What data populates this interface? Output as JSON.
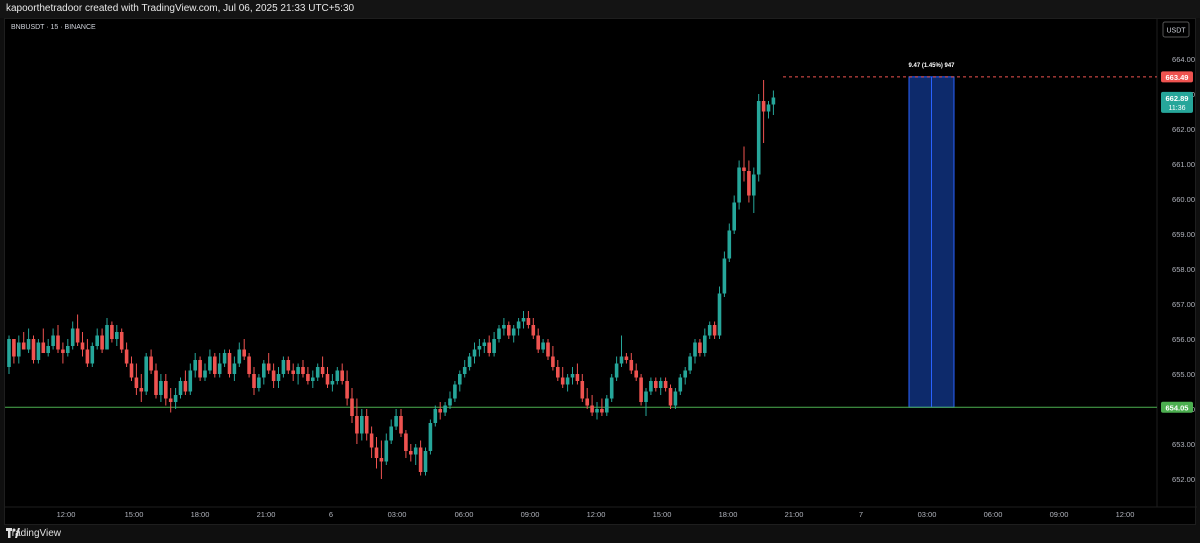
{
  "header": {
    "title": "kapoorthetradoor created with TradingView.com, Jul 06, 2025 21:33 UTC+5:30"
  },
  "footer": {
    "brand": "TradingView"
  },
  "colors": {
    "up": "#26a69a",
    "down": "#ef5350",
    "measure_fill": "#0d2a6b",
    "measure_border": "#2962ff",
    "support_line": "#4caf50",
    "resistance_line": "#ef5350"
  },
  "chart_data": {
    "type": "candlestick",
    "symbol": "BNBUSDT · 15 · BINANCE",
    "currency_button": "USDT",
    "ylim": [
      651.7,
      664.6
    ],
    "y_ticks": [
      "664.00",
      "663.00",
      "662.00",
      "661.00",
      "660.00",
      "659.00",
      "658.00",
      "657.00",
      "656.00",
      "655.00",
      "654.00",
      "653.00",
      "652.00"
    ],
    "x_ticks": [
      "12:00",
      "15:00",
      "18:00",
      "21:00",
      "6",
      "03:00",
      "06:00",
      "09:00",
      "12:00",
      "15:00",
      "18:00",
      "21:00",
      "7",
      "03:00",
      "06:00",
      "09:00",
      "12:00"
    ],
    "candles": [
      [
        655.2,
        656.1,
        655.0,
        656.0
      ],
      [
        656.0,
        656.0,
        655.3,
        655.5
      ],
      [
        655.5,
        656.1,
        655.3,
        655.9
      ],
      [
        655.9,
        656.2,
        655.7,
        655.7
      ],
      [
        655.7,
        656.3,
        655.6,
        656.0
      ],
      [
        656.0,
        656.1,
        655.3,
        655.4
      ],
      [
        655.4,
        656.0,
        655.3,
        655.9
      ],
      [
        655.9,
        656.3,
        655.6,
        655.6
      ],
      [
        655.6,
        656.0,
        655.5,
        655.8
      ],
      [
        655.8,
        656.3,
        655.7,
        656.1
      ],
      [
        656.1,
        656.4,
        655.6,
        655.7
      ],
      [
        655.7,
        655.9,
        655.3,
        655.6
      ],
      [
        655.6,
        656.0,
        655.5,
        655.8
      ],
      [
        655.8,
        656.5,
        655.7,
        656.3
      ],
      [
        656.3,
        656.7,
        655.8,
        655.9
      ],
      [
        655.9,
        656.2,
        655.5,
        655.7
      ],
      [
        655.7,
        656.0,
        655.2,
        655.3
      ],
      [
        655.3,
        655.9,
        655.2,
        655.8
      ],
      [
        655.8,
        656.3,
        655.7,
        656.1
      ],
      [
        656.1,
        656.3,
        655.6,
        655.7
      ],
      [
        655.7,
        656.6,
        655.7,
        656.4
      ],
      [
        656.4,
        656.5,
        655.9,
        656.0
      ],
      [
        656.0,
        656.4,
        655.8,
        656.2
      ],
      [
        656.2,
        656.3,
        655.6,
        655.7
      ],
      [
        655.7,
        655.9,
        655.2,
        655.3
      ],
      [
        655.3,
        655.5,
        654.8,
        654.9
      ],
      [
        654.9,
        655.3,
        654.4,
        654.6
      ],
      [
        654.6,
        655.0,
        654.2,
        654.5
      ],
      [
        654.5,
        655.6,
        654.4,
        655.5
      ],
      [
        655.5,
        655.7,
        655.0,
        655.1
      ],
      [
        655.1,
        655.3,
        654.3,
        654.4
      ],
      [
        654.4,
        655.0,
        654.2,
        654.8
      ],
      [
        654.8,
        655.0,
        654.1,
        654.3
      ],
      [
        654.3,
        654.6,
        653.9,
        654.2
      ],
      [
        654.2,
        654.6,
        654.0,
        654.4
      ],
      [
        654.4,
        654.9,
        654.3,
        654.8
      ],
      [
        654.8,
        655.1,
        654.4,
        654.5
      ],
      [
        654.5,
        655.3,
        654.4,
        655.1
      ],
      [
        655.1,
        655.6,
        654.9,
        655.4
      ],
      [
        655.4,
        655.5,
        654.8,
        654.9
      ],
      [
        654.9,
        655.3,
        654.8,
        655.1
      ],
      [
        655.1,
        655.7,
        655.0,
        655.5
      ],
      [
        655.5,
        655.6,
        654.9,
        655.0
      ],
      [
        655.0,
        655.6,
        654.9,
        655.3
      ],
      [
        655.3,
        655.7,
        655.2,
        655.6
      ],
      [
        655.6,
        655.7,
        654.9,
        655.0
      ],
      [
        655.0,
        655.5,
        654.8,
        655.3
      ],
      [
        655.3,
        655.9,
        655.2,
        655.7
      ],
      [
        655.7,
        656.0,
        655.4,
        655.5
      ],
      [
        655.5,
        655.6,
        654.9,
        655.0
      ],
      [
        655.0,
        655.2,
        654.4,
        654.6
      ],
      [
        654.6,
        655.0,
        654.5,
        654.9
      ],
      [
        654.9,
        655.4,
        654.7,
        655.3
      ],
      [
        655.3,
        655.6,
        655.0,
        655.1
      ],
      [
        655.1,
        655.3,
        654.6,
        654.8
      ],
      [
        654.8,
        655.2,
        654.6,
        655.0
      ],
      [
        655.0,
        655.5,
        654.9,
        655.4
      ],
      [
        655.4,
        655.5,
        655.0,
        655.1
      ],
      [
        655.1,
        655.3,
        654.8,
        655.0
      ],
      [
        655.0,
        655.3,
        654.7,
        655.2
      ],
      [
        655.2,
        655.4,
        654.9,
        655.0
      ],
      [
        655.0,
        655.2,
        654.7,
        654.8
      ],
      [
        654.8,
        655.1,
        654.6,
        654.9
      ],
      [
        654.9,
        655.3,
        654.8,
        655.2
      ],
      [
        655.2,
        655.5,
        654.9,
        655.0
      ],
      [
        655.0,
        655.2,
        654.6,
        654.7
      ],
      [
        654.7,
        655.0,
        654.5,
        654.8
      ],
      [
        654.8,
        655.2,
        654.7,
        655.1
      ],
      [
        655.1,
        655.3,
        654.7,
        654.8
      ],
      [
        654.8,
        655.1,
        654.1,
        654.3
      ],
      [
        654.3,
        654.6,
        653.6,
        653.8
      ],
      [
        653.8,
        654.3,
        653.0,
        653.3
      ],
      [
        653.3,
        654.0,
        653.1,
        653.8
      ],
      [
        653.8,
        654.0,
        653.1,
        653.3
      ],
      [
        653.3,
        653.5,
        652.6,
        652.9
      ],
      [
        652.9,
        653.2,
        652.3,
        652.6
      ],
      [
        652.6,
        653.1,
        652.0,
        652.5
      ],
      [
        652.5,
        653.3,
        652.4,
        653.1
      ],
      [
        653.1,
        653.7,
        653.0,
        653.5
      ],
      [
        653.5,
        654.0,
        653.4,
        653.8
      ],
      [
        653.8,
        654.0,
        653.2,
        653.3
      ],
      [
        653.3,
        653.4,
        652.6,
        652.8
      ],
      [
        652.8,
        653.0,
        652.5,
        652.7
      ],
      [
        652.7,
        653.0,
        652.4,
        652.9
      ],
      [
        652.9,
        653.1,
        652.1,
        652.2
      ],
      [
        652.2,
        652.9,
        652.1,
        652.8
      ],
      [
        652.8,
        653.7,
        652.7,
        653.6
      ],
      [
        653.6,
        654.1,
        653.5,
        654.0
      ],
      [
        654.0,
        654.2,
        653.7,
        653.9
      ],
      [
        653.9,
        654.2,
        653.8,
        654.1
      ],
      [
        654.1,
        654.5,
        654.0,
        654.3
      ],
      [
        654.3,
        654.8,
        654.2,
        654.7
      ],
      [
        654.7,
        655.1,
        654.5,
        655.0
      ],
      [
        655.0,
        655.4,
        654.9,
        655.2
      ],
      [
        655.2,
        655.6,
        655.1,
        655.5
      ],
      [
        655.5,
        655.9,
        655.3,
        655.7
      ],
      [
        655.7,
        656.0,
        655.5,
        655.8
      ],
      [
        655.8,
        656.0,
        655.6,
        655.9
      ],
      [
        655.9,
        656.1,
        655.5,
        655.6
      ],
      [
        655.6,
        656.2,
        655.5,
        656.0
      ],
      [
        656.0,
        656.4,
        655.9,
        656.3
      ],
      [
        656.3,
        656.6,
        656.1,
        656.4
      ],
      [
        656.4,
        656.5,
        656.0,
        656.1
      ],
      [
        656.1,
        656.4,
        655.9,
        656.3
      ],
      [
        656.3,
        656.6,
        656.1,
        656.5
      ],
      [
        656.5,
        656.8,
        656.3,
        656.6
      ],
      [
        656.6,
        656.8,
        656.3,
        656.4
      ],
      [
        656.4,
        656.6,
        656.0,
        656.1
      ],
      [
        656.1,
        656.3,
        655.6,
        655.7
      ],
      [
        655.7,
        656.0,
        655.6,
        655.9
      ],
      [
        655.9,
        656.0,
        655.4,
        655.5
      ],
      [
        655.5,
        655.8,
        655.1,
        655.2
      ],
      [
        655.2,
        655.4,
        654.8,
        654.9
      ],
      [
        654.9,
        655.2,
        654.6,
        654.7
      ],
      [
        654.7,
        655.0,
        654.5,
        654.9
      ],
      [
        654.9,
        655.2,
        654.7,
        655.0
      ],
      [
        655.0,
        655.3,
        654.7,
        654.8
      ],
      [
        654.8,
        655.0,
        654.2,
        654.3
      ],
      [
        654.3,
        654.6,
        654.0,
        654.1
      ],
      [
        654.1,
        654.4,
        653.8,
        653.9
      ],
      [
        653.9,
        654.2,
        653.7,
        654.0
      ],
      [
        654.0,
        654.3,
        653.8,
        653.9
      ],
      [
        653.9,
        654.4,
        653.8,
        654.3
      ],
      [
        654.3,
        655.0,
        654.2,
        654.9
      ],
      [
        654.9,
        655.5,
        654.8,
        655.3
      ],
      [
        655.3,
        656.1,
        655.2,
        655.5
      ],
      [
        655.5,
        655.6,
        655.3,
        655.4
      ],
      [
        655.4,
        655.6,
        655.0,
        655.1
      ],
      [
        655.1,
        655.3,
        654.8,
        654.9
      ],
      [
        654.9,
        655.0,
        654.1,
        654.2
      ],
      [
        654.2,
        654.6,
        653.8,
        654.5
      ],
      [
        654.5,
        654.9,
        654.4,
        654.8
      ],
      [
        654.8,
        654.9,
        654.5,
        654.6
      ],
      [
        654.6,
        654.9,
        654.4,
        654.8
      ],
      [
        654.8,
        654.9,
        654.5,
        654.6
      ],
      [
        654.6,
        654.7,
        654.0,
        654.1
      ],
      [
        654.1,
        654.6,
        654.0,
        654.5
      ],
      [
        654.5,
        655.0,
        654.4,
        654.9
      ],
      [
        654.9,
        655.2,
        654.7,
        655.1
      ],
      [
        655.1,
        655.6,
        655.0,
        655.5
      ],
      [
        655.5,
        656.0,
        655.3,
        655.9
      ],
      [
        655.9,
        656.0,
        655.5,
        655.6
      ],
      [
        655.6,
        656.3,
        655.5,
        656.1
      ],
      [
        656.1,
        656.5,
        656.0,
        656.4
      ],
      [
        656.4,
        656.5,
        656.0,
        656.1
      ],
      [
        656.1,
        657.5,
        656.0,
        657.3
      ],
      [
        657.3,
        658.5,
        657.2,
        658.3
      ],
      [
        658.3,
        659.3,
        658.2,
        659.1
      ],
      [
        659.1,
        660.1,
        659.0,
        659.9
      ],
      [
        659.9,
        661.1,
        659.7,
        660.9
      ],
      [
        660.9,
        661.5,
        660.5,
        660.8
      ],
      [
        660.8,
        661.1,
        659.9,
        660.1
      ],
      [
        660.1,
        660.9,
        659.6,
        660.7
      ],
      [
        660.7,
        663.0,
        660.5,
        662.8
      ],
      [
        662.8,
        663.4,
        661.6,
        662.5
      ],
      [
        662.5,
        662.8,
        662.3,
        662.7
      ],
      [
        662.7,
        663.1,
        662.4,
        662.9
      ]
    ],
    "annotations": {
      "resistance_price": "663.49",
      "support_price": "654.05",
      "last_price": "662.89",
      "countdown": "11:36",
      "measure_label": "9.47 (1.45%) 947"
    }
  }
}
